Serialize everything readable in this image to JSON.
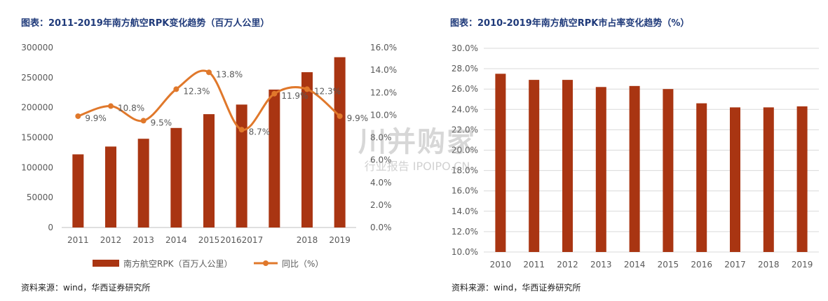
{
  "colors": {
    "bar": "#a93512",
    "line": "#e0782b",
    "title": "#1f3a7a",
    "axis": "#595959",
    "grid": "#d9d9d9"
  },
  "left": {
    "title": "图表：2011-2019年南方航空RPK变化趋势（百万人公里）",
    "source": "资料来源：wind，华西证券研究所",
    "legend_bar": "南方航空RPK（百万人公里）",
    "legend_line": "同比（%）"
  },
  "right": {
    "title": "图表：2010-2019年南方航空RPK市占率变化趋势（%）",
    "source": "资料来源：wind，华西证券研究所"
  },
  "watermark": {
    "main": "川并购家",
    "sub": "行业报告 IPOIPO.CN"
  },
  "chart_data": [
    {
      "type": "bar",
      "categories": [
        "2011",
        "2012",
        "2013",
        "2014",
        "2015",
        "2016",
        "2017",
        "2018",
        "2019"
      ],
      "x_tick_labels": [
        "2011",
        "2012",
        "2013",
        "2014",
        "2015",
        "20162017",
        "",
        "2018",
        "2019"
      ],
      "series": [
        {
          "name": "南方航空RPK（百万人公里）",
          "type": "bar",
          "axis": "left",
          "values": [
            122000,
            135000,
            148000,
            166000,
            189000,
            205000,
            230000,
            259000,
            284000
          ]
        },
        {
          "name": "同比（%）",
          "type": "line",
          "axis": "right",
          "values": [
            9.9,
            10.8,
            9.5,
            12.3,
            13.8,
            8.7,
            11.9,
            12.3,
            9.9
          ],
          "labels": [
            "9.9%",
            "10.8%",
            "9.5%",
            "12.3%",
            "13.8%",
            "8.7%",
            "11.9%",
            "12.3%",
            "9.9%"
          ]
        }
      ],
      "y_left": {
        "lim": [
          0,
          300000
        ],
        "ticks": [
          "0",
          "50000",
          "100000",
          "150000",
          "200000",
          "250000",
          "300000"
        ]
      },
      "y_right": {
        "lim": [
          0,
          16
        ],
        "ticks": [
          "0.0%",
          "2.0%",
          "4.0%",
          "6.0%",
          "8.0%",
          "10.0%",
          "12.0%",
          "14.0%",
          "16.0%"
        ]
      },
      "legend_position": "bottom"
    },
    {
      "type": "bar",
      "categories": [
        "2010",
        "2011",
        "2012",
        "2013",
        "2014",
        "2015",
        "2016",
        "2017",
        "2018",
        "2019"
      ],
      "series": [
        {
          "values": [
            27.5,
            26.9,
            26.9,
            26.2,
            26.3,
            26.0,
            24.6,
            24.2,
            24.2,
            24.3
          ]
        }
      ],
      "ylim": [
        10,
        30
      ],
      "y_ticks": [
        "10.0%",
        "12.0%",
        "14.0%",
        "16.0%",
        "18.0%",
        "20.0%",
        "22.0%",
        "24.0%",
        "26.0%",
        "28.0%",
        "30.0%"
      ],
      "grid": true
    }
  ]
}
